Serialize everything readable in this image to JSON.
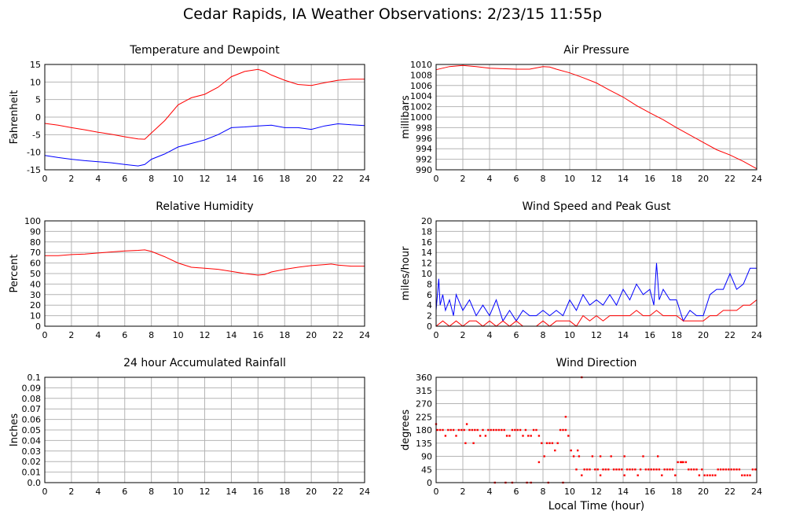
{
  "page": {
    "title": "Cedar Rapids, IA Weather Observations: 2/23/15 11:55p"
  },
  "chart_data": [
    {
      "id": "temp",
      "type": "line",
      "title": "Temperature and Dewpoint",
      "xlabel": "",
      "ylabel": "Fahrenheit",
      "xlim": [
        0,
        24
      ],
      "ylim": [
        -15,
        15
      ],
      "xticks": [
        0,
        2,
        4,
        6,
        8,
        10,
        12,
        14,
        16,
        18,
        20,
        22,
        24
      ],
      "yticks": [
        -15,
        -10,
        -5,
        0,
        5,
        10,
        15
      ],
      "grid": true,
      "series": [
        {
          "color": "#ff0000",
          "x": [
            0,
            1,
            2,
            3,
            4,
            5,
            6,
            7,
            7.5,
            8,
            9,
            10,
            11,
            12,
            13,
            14,
            15,
            16,
            16.5,
            17,
            18,
            19,
            20,
            21,
            22,
            23,
            24
          ],
          "y": [
            -1.8,
            -2.3,
            -3,
            -3.6,
            -4.3,
            -4.9,
            -5.6,
            -6.2,
            -6.3,
            -4.5,
            -1,
            3.5,
            5.5,
            6.5,
            8.5,
            11.5,
            13,
            13.6,
            13,
            12,
            10.5,
            9.3,
            9,
            9.8,
            10.5,
            10.8,
            10.8
          ]
        },
        {
          "color": "#0000ff",
          "x": [
            0,
            1,
            2,
            3,
            4,
            5,
            6,
            7,
            7.5,
            8,
            9,
            10,
            11,
            12,
            13,
            14,
            15,
            16,
            17,
            18,
            19,
            20,
            21,
            22,
            23,
            24
          ],
          "y": [
            -10.9,
            -11.5,
            -12,
            -12.4,
            -12.7,
            -13,
            -13.5,
            -13.9,
            -13.5,
            -12,
            -10.5,
            -8.5,
            -7.5,
            -6.5,
            -5,
            -3,
            -2.8,
            -2.5,
            -2.3,
            -3,
            -3,
            -3.5,
            -2.5,
            -1.9,
            -2.2,
            -2.4
          ]
        }
      ]
    },
    {
      "id": "pressure",
      "type": "line",
      "title": "Air Pressure",
      "xlabel": "",
      "ylabel": "millibars",
      "xlim": [
        0,
        24
      ],
      "ylim": [
        990,
        1010
      ],
      "xticks": [
        0,
        2,
        4,
        6,
        8,
        10,
        12,
        14,
        16,
        18,
        20,
        22,
        24
      ],
      "yticks": [
        990,
        992,
        994,
        996,
        998,
        1000,
        1002,
        1004,
        1006,
        1008,
        1010
      ],
      "grid": true,
      "series": [
        {
          "color": "#ff0000",
          "x": [
            0,
            1,
            2,
            3,
            4,
            5,
            6,
            7,
            8,
            8.5,
            9,
            10,
            11,
            12,
            13,
            14,
            15,
            16,
            17,
            18,
            19,
            20,
            21,
            22,
            23,
            24
          ],
          "y": [
            1009,
            1009.6,
            1009.8,
            1009.6,
            1009.3,
            1009.2,
            1009.1,
            1009.1,
            1009.6,
            1009.5,
            1009.1,
            1008.4,
            1007.5,
            1006.5,
            1005.1,
            1003.8,
            1002.2,
            1000.8,
            999.5,
            998,
            996.6,
            995.2,
            993.8,
            992.8,
            991.6,
            990.2
          ]
        }
      ]
    },
    {
      "id": "humidity",
      "type": "line",
      "title": "Relative Humidity",
      "xlabel": "",
      "ylabel": "Percent",
      "xlim": [
        0,
        24
      ],
      "ylim": [
        0,
        100
      ],
      "xticks": [
        0,
        2,
        4,
        6,
        8,
        10,
        12,
        14,
        16,
        18,
        20,
        22,
        24
      ],
      "yticks": [
        0,
        10,
        20,
        30,
        40,
        50,
        60,
        70,
        80,
        90,
        100
      ],
      "grid": true,
      "series": [
        {
          "color": "#ff0000",
          "x": [
            0,
            1,
            2,
            3,
            4,
            5,
            6,
            7,
            7.5,
            8,
            9,
            10,
            11,
            12,
            13,
            14,
            15,
            16,
            16.5,
            17,
            18,
            19,
            20,
            21,
            21.5,
            22,
            23,
            24
          ],
          "y": [
            67,
            67,
            68,
            68.5,
            69.5,
            70.5,
            71.5,
            72,
            72.5,
            71,
            66,
            60,
            56,
            55,
            54,
            52,
            50,
            48.5,
            49,
            51.5,
            54,
            56,
            57.5,
            58.5,
            59,
            58,
            57,
            57
          ]
        }
      ]
    },
    {
      "id": "wind",
      "type": "line",
      "title": "Wind Speed and Peak Gust",
      "xlabel": "",
      "ylabel": "miles/hour",
      "xlim": [
        0,
        24
      ],
      "ylim": [
        0,
        20
      ],
      "xticks": [
        0,
        2,
        4,
        6,
        8,
        10,
        12,
        14,
        16,
        18,
        20,
        22,
        24
      ],
      "yticks": [
        0,
        2,
        4,
        6,
        8,
        10,
        12,
        14,
        16,
        18,
        20
      ],
      "grid": true,
      "series": [
        {
          "color": "#0000ff",
          "x": [
            0,
            0.2,
            0.3,
            0.5,
            0.7,
            1,
            1.3,
            1.5,
            2,
            2.5,
            3,
            3.5,
            4,
            4.5,
            5,
            5.5,
            6,
            6.5,
            7,
            7.5,
            8,
            8.5,
            9,
            9.5,
            10,
            10.5,
            11,
            11.5,
            12,
            12.5,
            13,
            13.5,
            14,
            14.5,
            15,
            15.5,
            16,
            16.3,
            16.5,
            16.7,
            17,
            17.5,
            18,
            18.5,
            19,
            19.5,
            20,
            20.5,
            21,
            21.5,
            22,
            22.5,
            23,
            23.5,
            24
          ],
          "y": [
            3,
            9,
            4,
            6,
            3,
            5,
            2,
            6,
            3,
            5,
            2,
            4,
            2,
            5,
            1,
            3,
            1,
            3,
            2,
            2,
            3,
            2,
            3,
            2,
            5,
            3,
            6,
            4,
            5,
            4,
            6,
            4,
            7,
            5,
            8,
            6,
            7,
            4,
            12,
            5,
            7,
            5,
            5,
            1,
            3,
            2,
            2,
            6,
            7,
            7,
            10,
            7,
            8,
            11,
            11
          ]
        },
        {
          "color": "#ff0000",
          "x": [
            0,
            0.5,
            1,
            1.5,
            2,
            2.5,
            3,
            3.5,
            4,
            4.5,
            5,
            5.5,
            6,
            6.5,
            7,
            7.5,
            8,
            8.5,
            9,
            9.5,
            10,
            10.5,
            11,
            11.5,
            12,
            12.5,
            13,
            13.5,
            14,
            14.5,
            15,
            15.5,
            16,
            16.5,
            17,
            17.5,
            18,
            18.5,
            19,
            19.5,
            20,
            20.5,
            21,
            21.5,
            22,
            22.5,
            23,
            23.5,
            24
          ],
          "y": [
            0,
            1,
            0,
            1,
            0,
            1,
            1,
            0,
            1,
            0,
            1,
            0,
            1,
            0,
            0,
            0,
            1,
            0,
            1,
            1,
            1,
            0,
            2,
            1,
            2,
            1,
            2,
            2,
            2,
            2,
            3,
            2,
            2,
            3,
            2,
            2,
            2,
            1,
            1,
            1,
            1,
            2,
            2,
            3,
            3,
            3,
            4,
            4,
            5
          ]
        }
      ]
    },
    {
      "id": "rain",
      "type": "line",
      "title": "24 hour Accumulated Rainfall",
      "xlabel": "",
      "ylabel": "Inches",
      "xlim": [
        0,
        24
      ],
      "ylim": [
        0,
        0.1
      ],
      "xticks": [
        0,
        2,
        4,
        6,
        8,
        10,
        12,
        14,
        16,
        18,
        20,
        22,
        24
      ],
      "yticks": [
        0.0,
        0.01,
        0.02,
        0.03,
        0.04,
        0.05,
        0.06,
        0.07,
        0.08,
        0.09,
        0.1
      ],
      "ytick_labels": [
        "0.0",
        "0.01",
        "0.02",
        "0.03",
        "0.04",
        "0.05",
        "0.06",
        "0.07",
        "0.08",
        "0.09",
        "0.1"
      ],
      "grid": true,
      "series": [
        {
          "color": "#ff0000",
          "x": [
            0,
            24
          ],
          "y": [
            0,
            0
          ]
        }
      ]
    },
    {
      "id": "winddir",
      "type": "scatter",
      "title": "Wind Direction",
      "xlabel": "Local Time (hour)",
      "ylabel": "degrees",
      "xlim": [
        0,
        24
      ],
      "ylim": [
        0,
        360
      ],
      "xticks": [
        0,
        2,
        4,
        6,
        8,
        10,
        12,
        14,
        16,
        18,
        20,
        22,
        24
      ],
      "yticks": [
        0,
        45,
        90,
        135,
        180,
        225,
        270,
        315,
        360
      ],
      "grid": true,
      "series": [
        {
          "color": "#ff0000",
          "x": [
            0,
            0.1,
            0.3,
            0.5,
            0.7,
            0.9,
            1.1,
            1.3,
            1.5,
            1.7,
            1.9,
            2.1,
            2.3,
            2.5,
            2.7,
            2.9,
            3.1,
            3.3,
            3.5,
            3.7,
            3.9,
            4.1,
            4.3,
            4.5,
            4.7,
            4.9,
            5.1,
            5.3,
            5.5,
            5.7,
            5.9,
            6.1,
            6.3,
            6.5,
            6.7,
            6.9,
            7.1,
            7.3,
            7.5,
            7.7,
            7.9,
            8.1,
            8.3,
            8.5,
            8.7,
            8.9,
            9.1,
            9.3,
            9.5,
            9.7,
            9.9,
            10.1,
            10.3,
            10.5,
            10.7,
            10.9,
            11.1,
            11.3,
            11.5,
            11.7,
            11.9,
            12.1,
            12.3,
            12.5,
            12.7,
            12.9,
            13.1,
            13.3,
            13.5,
            13.7,
            13.9,
            14.1,
            14.3,
            14.5,
            14.7,
            14.9,
            15.1,
            15.3,
            15.5,
            15.7,
            15.9,
            16.1,
            16.3,
            16.5,
            16.7,
            16.9,
            17.1,
            17.3,
            17.5,
            17.7,
            17.9,
            18.1,
            18.3,
            18.5,
            18.7,
            18.9,
            19.1,
            19.3,
            19.5,
            19.7,
            19.9,
            20.1,
            20.3,
            20.5,
            20.7,
            20.9,
            21.1,
            21.3,
            21.5,
            21.7,
            21.9,
            22.1,
            22.3,
            22.5,
            22.7,
            22.9,
            23.1,
            23.3,
            23.5,
            23.7,
            23.9,
            4.4,
            5.2,
            5.7,
            6.8,
            7.1,
            8.4,
            9.5,
            10.6,
            12.3,
            14.1,
            16.6,
            18.4,
            2.2,
            2.8,
            9.7,
            10.9,
            7.7
          ],
          "y": [
            200,
            180,
            180,
            180,
            160,
            180,
            180,
            180,
            160,
            180,
            180,
            180,
            200,
            180,
            180,
            180,
            180,
            160,
            180,
            160,
            180,
            180,
            180,
            180,
            180,
            180,
            180,
            160,
            160,
            180,
            180,
            180,
            180,
            160,
            180,
            160,
            160,
            180,
            180,
            160,
            135,
            90,
            135,
            135,
            135,
            110,
            135,
            180,
            180,
            180,
            160,
            110,
            90,
            45,
            90,
            25,
            45,
            45,
            45,
            90,
            45,
            45,
            25,
            45,
            45,
            45,
            90,
            45,
            45,
            45,
            45,
            25,
            45,
            45,
            45,
            45,
            25,
            45,
            90,
            45,
            45,
            45,
            45,
            45,
            45,
            25,
            45,
            45,
            45,
            45,
            25,
            70,
            70,
            70,
            70,
            45,
            45,
            45,
            45,
            25,
            45,
            25,
            25,
            25,
            25,
            25,
            45,
            45,
            45,
            45,
            45,
            45,
            45,
            45,
            45,
            25,
            25,
            25,
            25,
            45,
            45,
            0,
            0,
            0,
            0,
            0,
            0,
            0,
            110,
            90,
            90,
            90,
            70,
            135,
            135,
            225,
            360,
            70
          ]
        }
      ]
    }
  ]
}
